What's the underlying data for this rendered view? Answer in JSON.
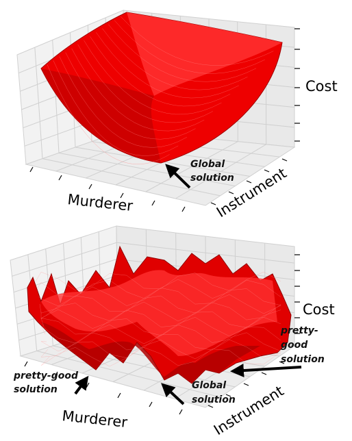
{
  "chart_data": [
    {
      "type": "surface",
      "xlabel": "Murderer",
      "ylabel": "Instrument",
      "zlabel": "Cost",
      "surface_color": "#ff0000",
      "surface_shape": "convex bowl",
      "annotations": [
        {
          "label_lines": [
            "Global",
            "solution"
          ],
          "marks": "global-minimum"
        }
      ]
    },
    {
      "type": "surface",
      "xlabel": "Murderer",
      "ylabel": "Instrument",
      "zlabel": "Cost",
      "surface_color": "#ff0000",
      "surface_shape": "rugged multimodal",
      "annotations": [
        {
          "label_lines": [
            "pretty-good",
            "solution"
          ],
          "marks": "local-minimum-left"
        },
        {
          "label_lines": [
            "Global",
            "solution"
          ],
          "marks": "global-minimum"
        },
        {
          "label_lines": [
            "pretty-",
            "good",
            "solution"
          ],
          "marks": "local-minimum-right"
        }
      ]
    }
  ]
}
